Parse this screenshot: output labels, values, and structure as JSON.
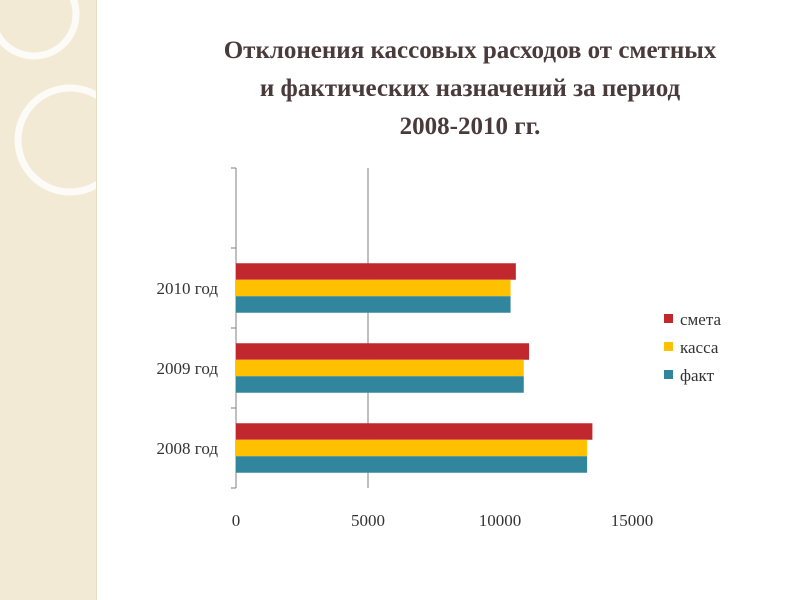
{
  "slide": {
    "title": "Отклонения кассовых  расходов   от сметных\nи фактических назначений  за период\n2008-2010 гг."
  },
  "chart_data": {
    "type": "bar",
    "orientation": "horizontal",
    "categories": [
      "2008 год",
      "2009 год",
      "2010 год"
    ],
    "series": [
      {
        "name": "смета",
        "color": "#c0282d",
        "values": [
          13500,
          11100,
          10600
        ]
      },
      {
        "name": "касса",
        "color": "#ffc000",
        "values": [
          13300,
          10900,
          10400
        ]
      },
      {
        "name": "факт",
        "color": "#31859c",
        "values": [
          13300,
          10900,
          10400
        ]
      }
    ],
    "xlim": [
      0,
      15000
    ],
    "xticks": [
      0,
      5000,
      10000,
      15000
    ],
    "gridlines": [
      5000
    ],
    "legend_position": "right",
    "legend_order": [
      "смета",
      "касса",
      "факт"
    ]
  }
}
